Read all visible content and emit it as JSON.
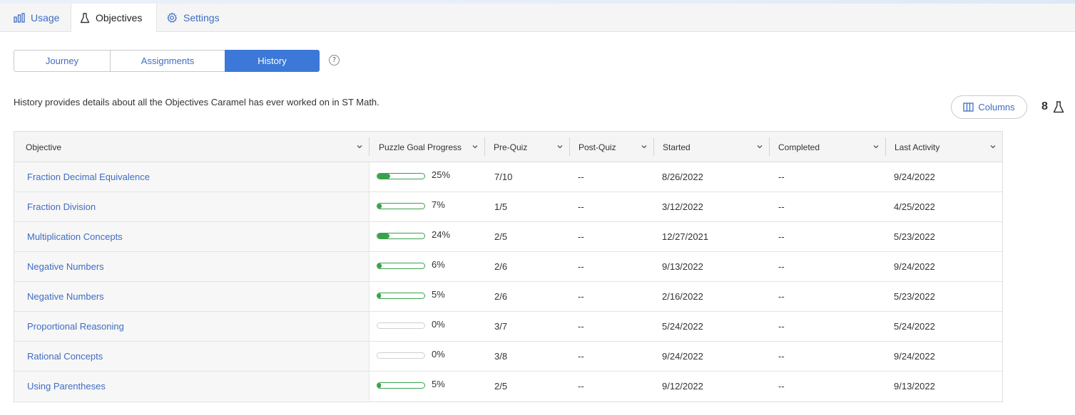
{
  "nav": {
    "tabs": [
      {
        "label": "Usage",
        "icon": "bar-chart-icon"
      },
      {
        "label": "Objectives",
        "icon": "flask-icon"
      },
      {
        "label": "Settings",
        "icon": "gear-icon"
      }
    ]
  },
  "segments": [
    "Journey",
    "Assignments",
    "History"
  ],
  "description": "History provides details about all the Objectives Caramel has ever worked on in ST Math.",
  "columns_button": "Columns",
  "objective_count": "8",
  "table": {
    "headers": [
      "Objective",
      "Puzzle Goal Progress",
      "Pre-Quiz",
      "Post-Quiz",
      "Started",
      "Completed",
      "Last Activity"
    ],
    "rows": [
      {
        "objective": "Fraction Decimal Equivalence",
        "progress_label": "25%",
        "progress": 25,
        "pre_quiz": "7/10",
        "post_quiz": "--",
        "started": "8/26/2022",
        "completed": "--",
        "last_activity": "9/24/2022"
      },
      {
        "objective": "Fraction Division",
        "progress_label": "7%",
        "progress": 7,
        "pre_quiz": "1/5",
        "post_quiz": "--",
        "started": "3/12/2022",
        "completed": "--",
        "last_activity": "4/25/2022"
      },
      {
        "objective": "Multiplication Concepts",
        "progress_label": "24%",
        "progress": 24,
        "pre_quiz": "2/5",
        "post_quiz": "--",
        "started": "12/27/2021",
        "completed": "--",
        "last_activity": "5/23/2022"
      },
      {
        "objective": "Negative Numbers",
        "progress_label": "6%",
        "progress": 6,
        "pre_quiz": "2/6",
        "post_quiz": "--",
        "started": "9/13/2022",
        "completed": "--",
        "last_activity": "9/24/2022"
      },
      {
        "objective": "Negative Numbers",
        "progress_label": "5%",
        "progress": 5,
        "pre_quiz": "2/6",
        "post_quiz": "--",
        "started": "2/16/2022",
        "completed": "--",
        "last_activity": "5/23/2022"
      },
      {
        "objective": "Proportional Reasoning",
        "progress_label": "0%",
        "progress": 0,
        "pre_quiz": "3/7",
        "post_quiz": "--",
        "started": "5/24/2022",
        "completed": "--",
        "last_activity": "5/24/2022"
      },
      {
        "objective": "Rational Concepts",
        "progress_label": "0%",
        "progress": 0,
        "pre_quiz": "3/8",
        "post_quiz": "--",
        "started": "9/24/2022",
        "completed": "--",
        "last_activity": "9/24/2022"
      },
      {
        "objective": "Using Parentheses",
        "progress_label": "5%",
        "progress": 5,
        "pre_quiz": "2/5",
        "post_quiz": "--",
        "started": "9/12/2022",
        "completed": "--",
        "last_activity": "9/13/2022"
      }
    ]
  },
  "colors": {
    "accent": "#3b78d8",
    "link": "#3f6cc3",
    "progress": "#3aa14a"
  }
}
